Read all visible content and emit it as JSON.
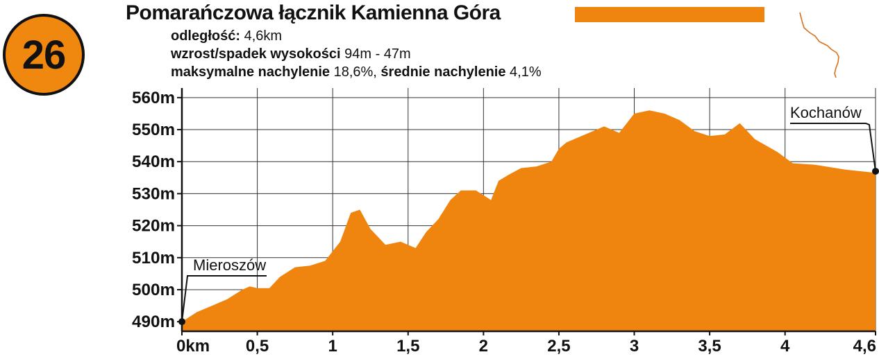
{
  "badge": {
    "number": "26"
  },
  "title": "Pomarańczowa łącznik Kamienna Góra",
  "stats": [
    {
      "label": "odległość:",
      "value": " 4,6km"
    },
    {
      "label": "wzrost/spadek wysokości",
      "value": " 94m - 47m"
    },
    {
      "label": "maksymalne nachylenie",
      "value": " 18,6%, ",
      "label2": "średnie nachylenie",
      "value2": " 4,1%"
    }
  ],
  "colors": {
    "accent": "#ef850f",
    "route_line": "#d9701a"
  },
  "chart_data": {
    "type": "area",
    "title": "Pomarańczowa łącznik Kamienna Góra",
    "xlabel": "",
    "ylabel": "",
    "xlim": [
      0,
      4.6
    ],
    "ylim": [
      487,
      563
    ],
    "x_ticks": [
      0,
      0.5,
      1,
      1.5,
      2,
      2.5,
      3,
      3.5,
      4,
      4.6
    ],
    "x_tick_labels": [
      "0km",
      "0,5",
      "1",
      "1,5",
      "2",
      "2,5",
      "3",
      "3,5",
      "4",
      "4,6"
    ],
    "y_ticks": [
      490,
      500,
      510,
      520,
      530,
      540,
      550,
      560
    ],
    "y_tick_labels": [
      "490m",
      "500m",
      "510m",
      "520m",
      "530m",
      "540m",
      "550m",
      "560m"
    ],
    "grid": true,
    "series": [
      {
        "x": [
          0,
          0.1,
          0.2,
          0.3,
          0.4,
          0.45,
          0.5,
          0.58,
          0.65,
          0.75,
          0.85,
          0.95,
          1.05,
          1.12,
          1.18,
          1.25,
          1.35,
          1.45,
          1.55,
          1.62,
          1.7,
          1.78,
          1.85,
          1.95,
          2.05,
          2.1,
          2.17,
          2.25,
          2.35,
          2.45,
          2.5,
          2.55,
          2.65,
          2.8,
          2.9,
          3.0,
          3.1,
          3.2,
          3.3,
          3.4,
          3.5,
          3.6,
          3.7,
          3.8,
          3.95,
          4.05,
          4.2,
          4.4,
          4.6
        ],
        "y": [
          490,
          493,
          495,
          497,
          500,
          501,
          500.5,
          500.5,
          504,
          507,
          507.5,
          509,
          515,
          524,
          525,
          519,
          514,
          515,
          513,
          518,
          522,
          528,
          531,
          531,
          528,
          534,
          536,
          538,
          538.5,
          540,
          544,
          546,
          548,
          551,
          549,
          555,
          556,
          555,
          553,
          549.5,
          548,
          548.5,
          552,
          547,
          543,
          539.5,
          539,
          537.5,
          536.5
        ]
      }
    ],
    "annotations": [
      {
        "label": "Mieroszów",
        "x": 0,
        "y": 490
      },
      {
        "label": "Kochanów",
        "x": 4.6,
        "y": 537
      }
    ]
  }
}
